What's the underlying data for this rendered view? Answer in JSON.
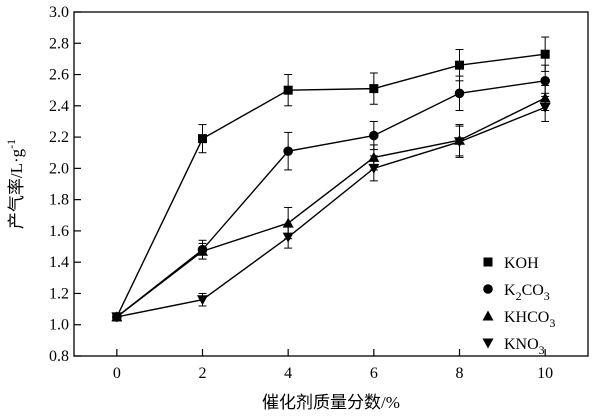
{
  "chart_data": {
    "type": "line",
    "xlabel": "催化剂质量分数/%",
    "ylabel": "产气率/L·g",
    "ylabel_sup": "-1",
    "xlim": [
      -1,
      11
    ],
    "ylim": [
      0.8,
      3.0
    ],
    "x_ticks": [
      0,
      2,
      4,
      6,
      8,
      10
    ],
    "y_ticks": [
      0.8,
      1.0,
      1.2,
      1.4,
      1.6,
      1.8,
      2.0,
      2.2,
      2.4,
      2.6,
      2.8,
      3.0
    ],
    "y_tick_labels": [
      "0.8",
      "1.0",
      "1.2",
      "1.4",
      "1.6",
      "1.8",
      "2.0",
      "2.2",
      "2.4",
      "2.6",
      "2.8",
      "3.0"
    ],
    "grid": false,
    "legend_position": "bottom-right",
    "x": [
      0,
      2,
      4,
      6,
      8,
      10
    ],
    "series": [
      {
        "name": "KOH",
        "name_main": "KOH",
        "name_sub": "",
        "name_tail": "",
        "marker": "square",
        "values": [
          1.05,
          2.19,
          2.5,
          2.51,
          2.66,
          2.73
        ],
        "errors": [
          0.02,
          0.09,
          0.1,
          0.1,
          0.1,
          0.11
        ]
      },
      {
        "name": "K2CO3",
        "name_main": "K",
        "name_sub": "2",
        "name_tail": "CO3",
        "marker": "circle",
        "values": [
          1.05,
          1.48,
          2.11,
          2.21,
          2.48,
          2.56
        ],
        "errors": [
          0.02,
          0.06,
          0.12,
          0.09,
          0.11,
          0.1
        ]
      },
      {
        "name": "KHCO3",
        "name_main": "KHCO",
        "name_sub": "3",
        "name_tail": "",
        "marker": "triangle-up",
        "values": [
          1.05,
          1.47,
          1.65,
          2.07,
          2.18,
          2.45
        ],
        "errors": [
          0.02,
          0.05,
          0.1,
          0.08,
          0.1,
          0.08
        ]
      },
      {
        "name": "KNO3",
        "name_main": "KNO",
        "name_sub": "3",
        "name_tail": "",
        "marker": "triangle-down",
        "values": [
          1.05,
          1.16,
          1.56,
          2.0,
          2.17,
          2.39
        ],
        "errors": [
          0.02,
          0.04,
          0.07,
          0.08,
          0.1,
          0.09
        ]
      }
    ]
  }
}
